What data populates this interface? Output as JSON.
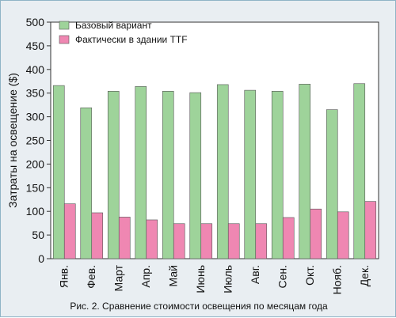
{
  "chart_data": {
    "type": "bar",
    "ylabel": "Затраты на освещение ($)",
    "ylim": [
      0,
      500
    ],
    "yticks": [
      "0",
      "50",
      "100",
      "150",
      "200",
      "250",
      "300",
      "350",
      "400",
      "450",
      "500"
    ],
    "categories": [
      "Янв.",
      "Фев.",
      "Март",
      "Апр.",
      "Май",
      "Июнь",
      "Июль",
      "Авг.",
      "Сен.",
      "Окт.",
      "Нояб.",
      "Дек."
    ],
    "series": [
      {
        "name": "Базовый вариант",
        "color": "#9ed39a",
        "values": [
          366,
          319,
          354,
          364,
          354,
          351,
          368,
          356,
          354,
          369,
          315,
          370
        ]
      },
      {
        "name": "Фактически в здании TTF",
        "color": "#ef87b2",
        "values": [
          116,
          97,
          88,
          82,
          74,
          74,
          74,
          74,
          87,
          105,
          99,
          121
        ]
      }
    ],
    "legend_position": "top-left",
    "grid": false,
    "caption": "Рис. 2. Сравнение стоимости освещения по месяцам года"
  }
}
